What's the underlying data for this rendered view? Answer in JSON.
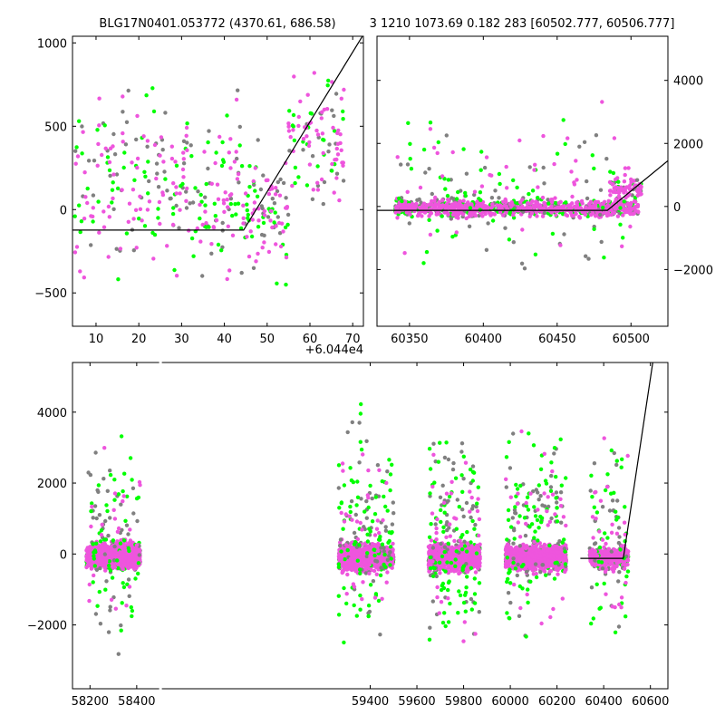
{
  "figure": {
    "title_left": "BLG17N0401.053772 (4370.61, 686.58)",
    "title_right": "3 1210 1073.69 0.182 283 [60502.777, 60506.777]"
  },
  "colors": {
    "series_a": "#808080",
    "series_b": "#00ff00",
    "series_c": "#ee55dd",
    "model": "#000000"
  },
  "chart_data": [
    {
      "type": "scatter",
      "name": "top-left",
      "x_offset_label": "+6.044e4",
      "xlim": [
        4.5,
        72.5
      ],
      "ylim": [
        -700,
        1040
      ],
      "xticks": [
        10,
        20,
        30,
        40,
        50,
        60,
        70
      ],
      "xtick_labels": [
        "10",
        "20",
        "30",
        "40",
        "50",
        "60",
        "70"
      ],
      "yticks": [
        -500,
        0,
        500,
        1000
      ],
      "ytick_labels": [
        "−500",
        "0",
        "500",
        "1000"
      ],
      "ytick_side": "left",
      "model_line": {
        "x": [
          4.5,
          44.5,
          72.5
        ],
        "y": [
          -123,
          -123,
          1050
        ]
      },
      "clusters": [
        {
          "x": [
            5,
            44
          ],
          "y": [
            -700,
            1000
          ],
          "n": [
            70,
            80,
            120
          ]
        },
        {
          "x": [
            44,
            55
          ],
          "y": [
            -600,
            550
          ],
          "n": [
            25,
            30,
            45
          ]
        },
        {
          "x": [
            55,
            68
          ],
          "y": [
            -200,
            1040
          ],
          "n": [
            20,
            25,
            55
          ]
        }
      ]
    },
    {
      "type": "scatter",
      "name": "top-right",
      "xlim": [
        60328,
        60525
      ],
      "ylim": [
        -3800,
        5400
      ],
      "xticks": [
        60350,
        60400,
        60450,
        60500
      ],
      "xtick_labels": [
        "60350",
        "60400",
        "60450",
        "60500"
      ],
      "yticks": [
        -2000,
        0,
        2000,
        4000
      ],
      "ytick_labels": [
        "−2000",
        "0",
        "2000",
        "4000"
      ],
      "ytick_side": "right",
      "model_line": {
        "x": [
          60328,
          60484,
          60525
        ],
        "y": [
          -123,
          -123,
          1450
        ]
      },
      "clusters": [
        {
          "x": [
            60340,
            60505
          ],
          "y": [
            -500,
            400
          ],
          "n": [
            250,
            150,
            500
          ]
        },
        {
          "x": [
            60340,
            60505
          ],
          "y": [
            -3800,
            4500
          ],
          "n": [
            40,
            60,
            50
          ]
        },
        {
          "x": [
            60485,
            60507
          ],
          "y": [
            0,
            1100
          ],
          "n": [
            15,
            10,
            60
          ]
        }
      ]
    },
    {
      "type": "scatter",
      "name": "bottom",
      "xlim": [
        58125,
        60675
      ],
      "ylim": [
        -3800,
        5400
      ],
      "xticks": [
        58200,
        58400,
        59400,
        59600,
        59800,
        60000,
        60200,
        60400,
        60600
      ],
      "xtick_labels": [
        "58200",
        "58400",
        "59400",
        "59600",
        "59800",
        "60000",
        "60200",
        "60400",
        "60600"
      ],
      "yticks": [
        -2000,
        0,
        2000,
        4000
      ],
      "ytick_labels": [
        "−2000",
        "0",
        "2000",
        "4000"
      ],
      "ytick_side": "left",
      "model_line": {
        "x": [
          60300,
          60484,
          60610
        ],
        "y": [
          -123,
          -123,
          5400
        ]
      },
      "clusters": [
        {
          "x": [
            58185,
            58415
          ],
          "y": [
            -600,
            500
          ],
          "n": [
            200,
            100,
            900
          ]
        },
        {
          "x": [
            58185,
            58415
          ],
          "y": [
            -3800,
            4800
          ],
          "n": [
            50,
            60,
            30
          ]
        },
        {
          "x": [
            59265,
            59500
          ],
          "y": [
            -700,
            500
          ],
          "n": [
            200,
            100,
            900
          ]
        },
        {
          "x": [
            59265,
            59500
          ],
          "y": [
            -3800,
            5000
          ],
          "n": [
            60,
            90,
            40
          ]
        },
        {
          "x": [
            59650,
            59870
          ],
          "y": [
            -700,
            500
          ],
          "n": [
            200,
            100,
            800
          ]
        },
        {
          "x": [
            59650,
            59870
          ],
          "y": [
            -3800,
            5000
          ],
          "n": [
            60,
            90,
            40
          ]
        },
        {
          "x": [
            59980,
            60240
          ],
          "y": [
            -700,
            500
          ],
          "n": [
            200,
            100,
            800
          ]
        },
        {
          "x": [
            59980,
            60240
          ],
          "y": [
            -3800,
            5000
          ],
          "n": [
            60,
            80,
            40
          ]
        },
        {
          "x": [
            60340,
            60505
          ],
          "y": [
            -600,
            400
          ],
          "n": [
            80,
            40,
            250
          ]
        },
        {
          "x": [
            60340,
            60505
          ],
          "y": [
            -3800,
            4900
          ],
          "n": [
            30,
            40,
            30
          ]
        }
      ]
    }
  ]
}
